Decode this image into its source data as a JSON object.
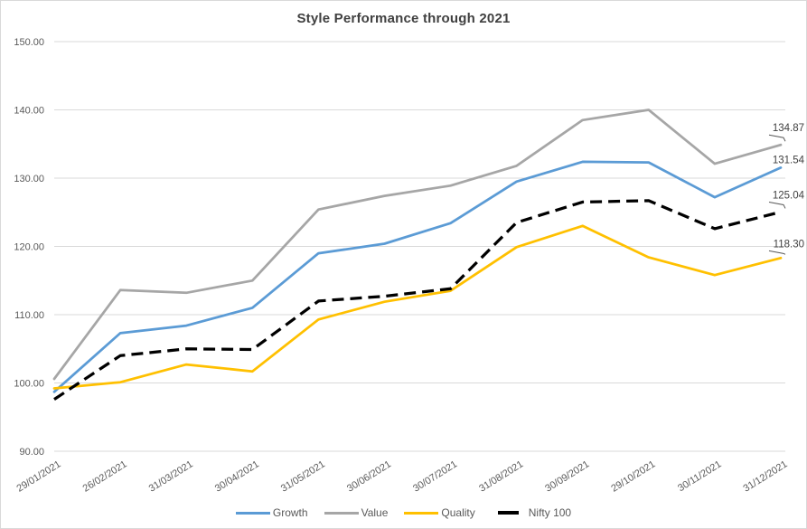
{
  "chart_data": {
    "type": "line",
    "title": "Style Performance through 2021",
    "categories": [
      "29/01/2021",
      "26/02/2021",
      "31/03/2021",
      "30/04/2021",
      "31/05/2021",
      "30/06/2021",
      "30/07/2021",
      "31/08/2021",
      "30/09/2021",
      "29/10/2021",
      "30/11/2021",
      "31/12/2021"
    ],
    "series": [
      {
        "name": "Growth",
        "color": "#5B9BD5",
        "dash": null,
        "values": [
          98.7,
          107.3,
          108.4,
          111.0,
          119.0,
          120.4,
          123.4,
          129.5,
          132.4,
          132.3,
          127.2,
          131.54
        ],
        "end_label": "131.54"
      },
      {
        "name": "Value",
        "color": "#A6A6A6",
        "dash": null,
        "values": [
          100.6,
          113.6,
          113.2,
          115.0,
          125.4,
          127.4,
          128.9,
          131.8,
          138.5,
          140.0,
          132.1,
          134.87
        ],
        "end_label": "134.87"
      },
      {
        "name": "Quality",
        "color": "#FFC000",
        "dash": null,
        "values": [
          99.2,
          100.1,
          102.7,
          101.7,
          109.3,
          111.9,
          113.5,
          119.9,
          123.0,
          118.4,
          115.8,
          118.3
        ],
        "end_label": "118.30"
      },
      {
        "name": "Nifty 100",
        "color": "#000000",
        "dash": "13 7",
        "values": [
          97.6,
          104.0,
          105.0,
          104.9,
          112.0,
          112.7,
          113.8,
          123.5,
          126.5,
          126.7,
          122.6,
          125.04
        ],
        "end_label": "125.04"
      }
    ],
    "y_ticks": [
      {
        "value": 150,
        "label": "150.00"
      },
      {
        "value": 140,
        "label": "140.00"
      },
      {
        "value": 130,
        "label": "130.00"
      },
      {
        "value": 120,
        "label": "120.00"
      },
      {
        "value": 110,
        "label": "110.00"
      },
      {
        "value": 100,
        "label": "100.00"
      },
      {
        "value": 90,
        "label": "90.00"
      }
    ],
    "ylim": [
      90,
      150
    ],
    "grid": "horizontal",
    "legend": {
      "position": "bottom",
      "items": [
        "Growth",
        "Value",
        "Quality",
        "Nifty 100"
      ]
    },
    "styles": {
      "grid_color": "#D9D9D9",
      "axis_text_color": "#595959",
      "title_color": "#404040",
      "data_label_color": "#404040",
      "background": "#FFFFFF",
      "border_color": "#D9D9D9"
    }
  }
}
